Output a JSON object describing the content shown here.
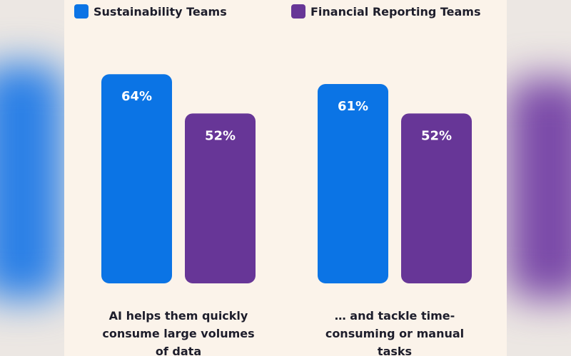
{
  "chart_data": {
    "type": "bar",
    "categories": [
      "AI helps them quickly consume large volumes of data",
      "… and tackle time-consuming or manual tasks"
    ],
    "series": [
      {
        "name": "Sustainability Teams",
        "color": "#0b74e5",
        "values": [
          64,
          61
        ],
        "value_labels": [
          "64%",
          "61%"
        ]
      },
      {
        "name": "Financial Reporting Teams",
        "color": "#673697",
        "values": [
          52,
          52
        ],
        "value_labels": [
          "52%",
          "52%"
        ]
      }
    ]
  }
}
